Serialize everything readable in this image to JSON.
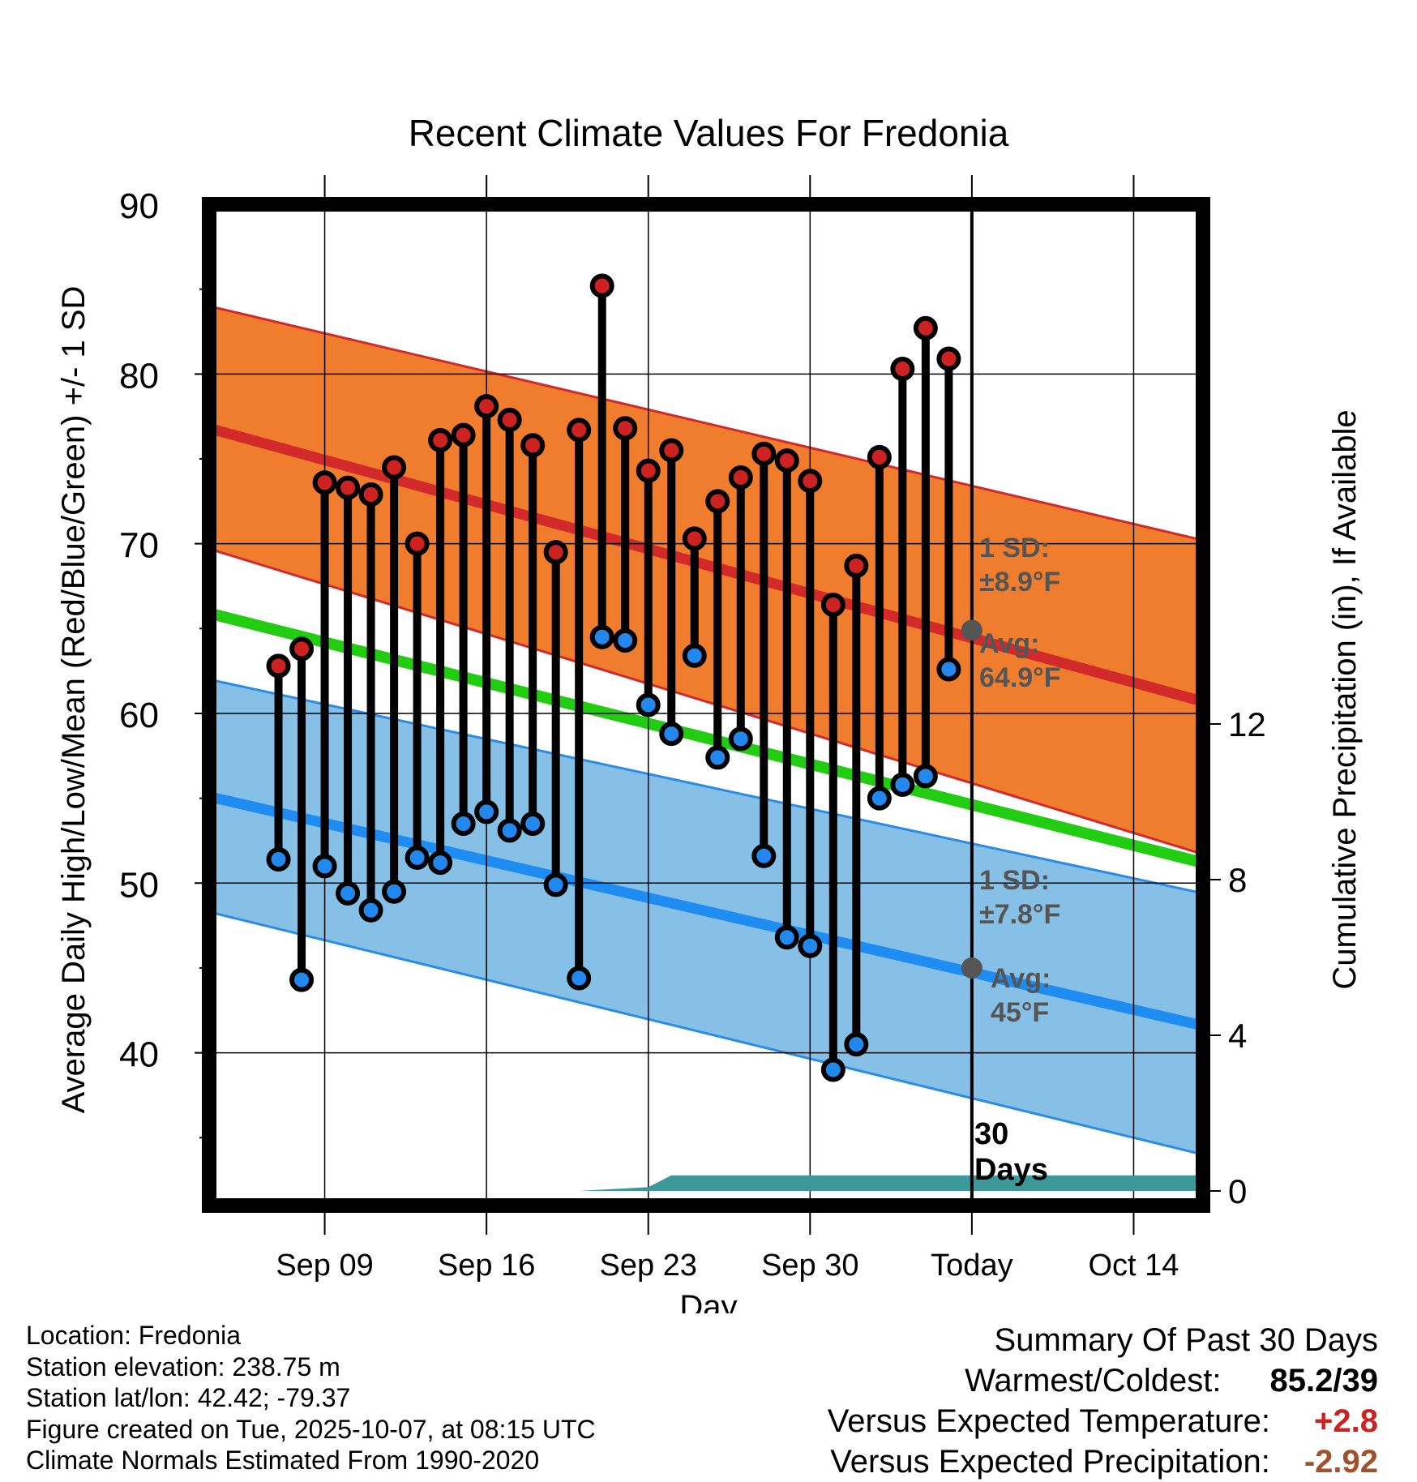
{
  "chart_data": {
    "type": "line",
    "title": "Recent Climate Values For Fredonia",
    "xlabel": "Day",
    "ylabel": "Average Daily High/Low/Mean (Red/Blue/Green) +/- 1 SD",
    "ylabel_right": "Cumulative Precipitation (in), If Available",
    "ylim": [
      31,
      90
    ],
    "ylim_right": [
      0,
      24
    ],
    "xlim": [
      -3,
      40
    ],
    "yticks": [
      40,
      50,
      60,
      70,
      80,
      90
    ],
    "yticks_right": [
      0,
      4,
      8,
      12
    ],
    "xticks": [
      {
        "day": 2,
        "label": "Sep 09"
      },
      {
        "day": 9,
        "label": "Sep 16"
      },
      {
        "day": 16,
        "label": "Sep 23"
      },
      {
        "day": 23,
        "label": "Sep 30"
      },
      {
        "day": 30,
        "label": "Today"
      },
      {
        "day": 37,
        "label": "Oct 14"
      }
    ],
    "today_day": 30,
    "today_label": [
      "30",
      "Days"
    ],
    "daily": {
      "days": [
        0,
        1,
        2,
        3,
        4,
        5,
        6,
        7,
        8,
        9,
        10,
        11,
        12,
        13,
        14,
        15,
        16,
        17,
        18,
        19,
        20,
        21,
        22,
        23,
        24,
        25,
        26,
        27,
        28,
        29
      ],
      "highs": [
        62.8,
        63.8,
        73.6,
        73.3,
        72.9,
        74.5,
        70.0,
        76.1,
        76.4,
        78.1,
        77.3,
        75.8,
        69.5,
        76.7,
        85.2,
        76.8,
        74.3,
        75.5,
        70.3,
        72.5,
        73.9,
        75.3,
        74.9,
        73.7,
        66.4,
        68.7,
        75.1,
        80.3,
        82.7,
        80.9
      ],
      "lows": [
        51.4,
        44.3,
        51.0,
        49.4,
        48.4,
        49.5,
        51.5,
        51.2,
        53.5,
        54.2,
        53.1,
        53.5,
        49.9,
        44.4,
        64.5,
        64.3,
        60.5,
        58.8,
        63.4,
        57.4,
        58.5,
        51.6,
        46.8,
        46.3,
        39.0,
        40.5,
        55.0,
        55.8,
        56.3,
        62.6
      ]
    },
    "normals": {
      "days": [
        -3,
        40
      ],
      "high_avg": [
        76.8,
        60.7
      ],
      "high_sd_upper": [
        84.0,
        70.2
      ],
      "high_sd_lower": [
        69.7,
        51.7
      ],
      "mean_avg": [
        65.9,
        51.2
      ],
      "low_avg": [
        55.1,
        41.6
      ],
      "low_sd_upper": [
        62.0,
        49.4
      ],
      "low_sd_lower": [
        48.3,
        34.0
      ]
    },
    "precipitation": {
      "days": [
        -3,
        13,
        16,
        17,
        40
      ],
      "cumulative_in": [
        0,
        0,
        0.1,
        0.4,
        0.4
      ]
    },
    "annotations": {
      "high_sd": [
        "1 SD:",
        "±8.9°F"
      ],
      "high_avg": [
        "Avg:",
        "64.9°F"
      ],
      "low_sd": [
        "1 SD:",
        "±7.8°F"
      ],
      "low_avg": [
        "Avg:",
        "45°F"
      ],
      "high_avg_value": 64.9,
      "low_avg_value": 45
    },
    "colors": {
      "high_band": "#f07d2e",
      "high_line": "#d22a2a",
      "mean_line": "#22cc11",
      "low_band": "#86c0e6",
      "low_line": "#1e8cf0",
      "low_band_edge": "#2a8ce6",
      "high_band_edge": "#d22a2a",
      "precip": "#3d9999",
      "high_dot": "#cc2222",
      "low_dot": "#2288ee",
      "annotation_text": "#555555",
      "today_dot": "#555555"
    }
  },
  "info": {
    "location": "Location: Fredonia",
    "elevation": "Station elevation: 238.75 m",
    "latlon": "Station lat/lon: 42.42; -79.37",
    "created": "Figure created on Tue, 2025-10-07, at 08:15 UTC",
    "normals": "Climate Normals Estimated From 1990-2020"
  },
  "summary": {
    "title": "Summary Of Past 30 Days",
    "warm_cold_label": "Warmest/Coldest:",
    "warm_cold_value": "85.2/39",
    "temp_label": "Versus Expected Temperature:",
    "temp_value": "+2.8",
    "precip_label": "Versus Expected Precipitation:",
    "precip_value": "-2.92"
  }
}
